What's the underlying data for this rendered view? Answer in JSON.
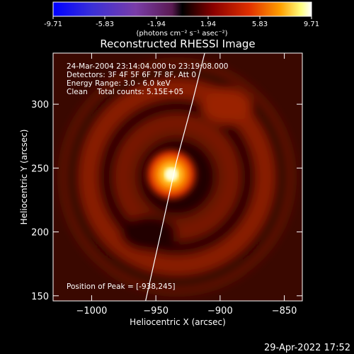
{
  "colorbar": {
    "ticks": [
      "-9.71",
      "-5.83",
      "-1.94",
      "1.94",
      "5.83",
      "9.71"
    ],
    "unit_label": "(photons cm⁻² s⁻¹ asec⁻²)"
  },
  "chart_data": {
    "type": "heatmap",
    "title": "Reconstructed RHESSI Image",
    "xlabel": "Heliocentric X (arcsec)",
    "ylabel": "Heliocentric Y (arcsec)",
    "xlim": [
      -1030,
      -836
    ],
    "ylim": [
      146,
      340
    ],
    "x_ticks": [
      {
        "value": -1000,
        "label": "−1000"
      },
      {
        "value": -950,
        "label": "−950"
      },
      {
        "value": -900,
        "label": "−900"
      },
      {
        "value": -850,
        "label": "−850"
      }
    ],
    "y_ticks": [
      {
        "value": 150,
        "label": "150"
      },
      {
        "value": 200,
        "label": "200"
      },
      {
        "value": 250,
        "label": "250"
      },
      {
        "value": 300,
        "label": "300"
      }
    ],
    "value_range": [
      -9.71,
      9.71
    ],
    "peak": {
      "x": -938,
      "y": 245
    },
    "limb_curve": [
      [
        -958,
        146
      ],
      [
        -946,
        200
      ],
      [
        -934,
        255
      ],
      [
        -922,
        300
      ],
      [
        -912,
        340
      ]
    ],
    "info_lines": [
      "24-Mar-2004 23:14:04.000 to 23:19:08.000",
      "Detectors: 3F 4F 5F 6F 7F 8F, Att 0",
      "Energy Range: 3.0 - 6.0 keV",
      "Clean    Total counts: 5.15E+05"
    ],
    "peak_text": "Position of Peak = [-938,245]"
  },
  "footer": {
    "date": "29-Apr-2022 17:52"
  }
}
